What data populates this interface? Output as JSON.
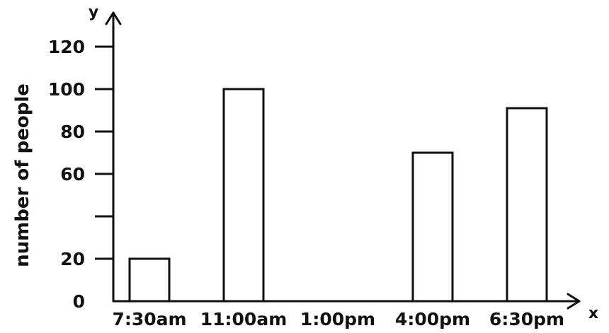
{
  "chart_data": {
    "type": "bar",
    "title": "",
    "xlabel": "x",
    "ylabel": "number of people",
    "y_axis_letter": "y",
    "categories": [
      "7:30am",
      "11:00am",
      "1:00pm",
      "4:00pm",
      "6:30pm"
    ],
    "values": [
      20,
      100,
      0,
      70,
      91
    ],
    "ylim": [
      0,
      130
    ],
    "yticks": [
      0,
      20,
      40,
      60,
      80,
      100,
      120
    ],
    "ytick_labels": [
      "0",
      "20",
      "",
      "60",
      "80",
      "100",
      "120"
    ],
    "grid": false,
    "legend": "none",
    "colors": {
      "bar_fill": "#ffffff",
      "stroke": "#111111"
    }
  }
}
